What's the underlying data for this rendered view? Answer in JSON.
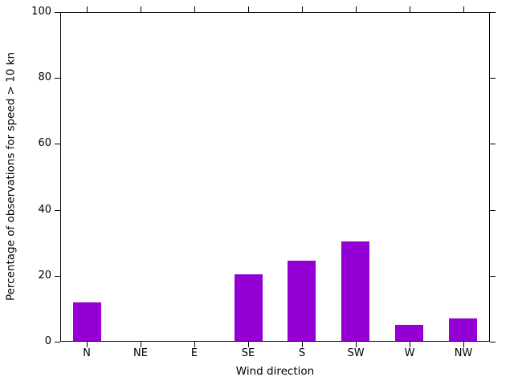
{
  "chart_data": {
    "type": "bar",
    "title": "",
    "xlabel": "Wind direction",
    "ylabel": "Percentage of observations for speed > 10 kn",
    "categories": [
      "N",
      "NE",
      "E",
      "SE",
      "S",
      "SW",
      "W",
      "NW"
    ],
    "values": [
      12,
      0,
      0,
      20.5,
      24.5,
      30.5,
      5,
      7
    ],
    "ylim": [
      0,
      100
    ],
    "yticks": [
      0,
      20,
      40,
      60,
      80,
      100
    ],
    "grid": "off",
    "legend": "none",
    "frame": "box",
    "tick_direction": "out",
    "colors": {
      "bar": "#9400d3",
      "axis": "#000000",
      "text": "#000000",
      "background": "#ffffff"
    }
  }
}
